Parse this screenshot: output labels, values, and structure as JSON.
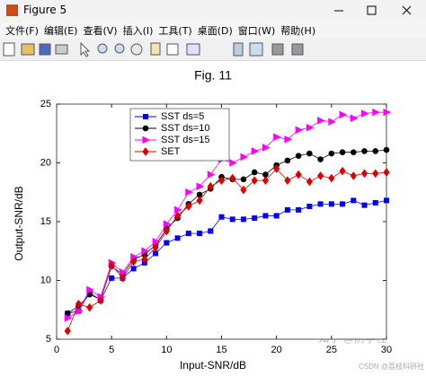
{
  "window": {
    "title": "Figure 5",
    "menu": [
      "文件(F)",
      "编辑(E)",
      "查看(V)",
      "插入(I)",
      "工具(T)",
      "桌面(D)",
      "窗口(W)",
      "帮助(H)"
    ]
  },
  "watermark": {
    "zhihu": "知乎 @防学社",
    "csdn": "CSDN @荔枝科研社"
  },
  "chart_data": {
    "type": "line",
    "title": "Fig. 11",
    "xlabel": "Input-SNR/dB",
    "ylabel": "Output-SNR/dB",
    "x": [
      1,
      2,
      3,
      4,
      5,
      6,
      7,
      8,
      9,
      10,
      11,
      12,
      13,
      14,
      15,
      16,
      17,
      18,
      19,
      20,
      21,
      22,
      23,
      24,
      25,
      26,
      27,
      28,
      29,
      30
    ],
    "xlim": [
      0,
      30
    ],
    "xticks": [
      0,
      5,
      10,
      15,
      20,
      25,
      30
    ],
    "ylim": [
      5,
      25
    ],
    "yticks": [
      5,
      10,
      15,
      20,
      25
    ],
    "grid": false,
    "legend": "upper left",
    "series": [
      {
        "name": "SST ds=5",
        "color": "#0000ff",
        "marker": "square",
        "values": [
          7.2,
          7.4,
          9.0,
          8.3,
          10.2,
          10.2,
          11.0,
          11.5,
          12.3,
          13.2,
          13.6,
          14.0,
          14.0,
          14.2,
          15.4,
          15.2,
          15.2,
          15.3,
          15.5,
          15.5,
          16.0,
          16.0,
          16.3,
          16.5,
          16.5,
          16.5,
          16.8,
          16.4,
          16.6,
          16.8
        ]
      },
      {
        "name": "SST ds=10",
        "color": "#000000",
        "marker": "circle",
        "values": [
          7.2,
          7.8,
          8.8,
          8.4,
          11.2,
          10.5,
          11.8,
          12.2,
          13.0,
          14.4,
          15.3,
          16.5,
          17.3,
          17.8,
          18.8,
          18.6,
          18.6,
          19.2,
          19.0,
          19.8,
          20.2,
          20.6,
          20.8,
          20.3,
          20.8,
          20.9,
          20.9,
          21.0,
          21.0,
          21.1
        ]
      },
      {
        "name": "SST ds=15",
        "color": "#ff00ff",
        "marker": "triangle",
        "values": [
          6.8,
          7.4,
          9.2,
          8.6,
          11.5,
          10.7,
          12.0,
          12.5,
          13.3,
          14.8,
          16.0,
          17.5,
          18.0,
          19.0,
          20.3,
          20.0,
          20.5,
          21.0,
          21.3,
          22.2,
          22.0,
          22.8,
          23.0,
          23.6,
          23.5,
          24.1,
          23.8,
          24.2,
          24.3,
          24.3
        ]
      },
      {
        "name": "SET",
        "color": "#dd0000",
        "marker": "diamond",
        "values": [
          5.7,
          8.0,
          7.7,
          8.3,
          11.3,
          10.2,
          11.6,
          11.8,
          12.8,
          14.2,
          15.5,
          16.3,
          16.8,
          18.0,
          18.5,
          18.7,
          17.7,
          18.5,
          18.5,
          19.5,
          18.5,
          19.0,
          18.4,
          18.9,
          18.7,
          19.3,
          18.9,
          19.1,
          19.1,
          19.2
        ]
      }
    ]
  }
}
